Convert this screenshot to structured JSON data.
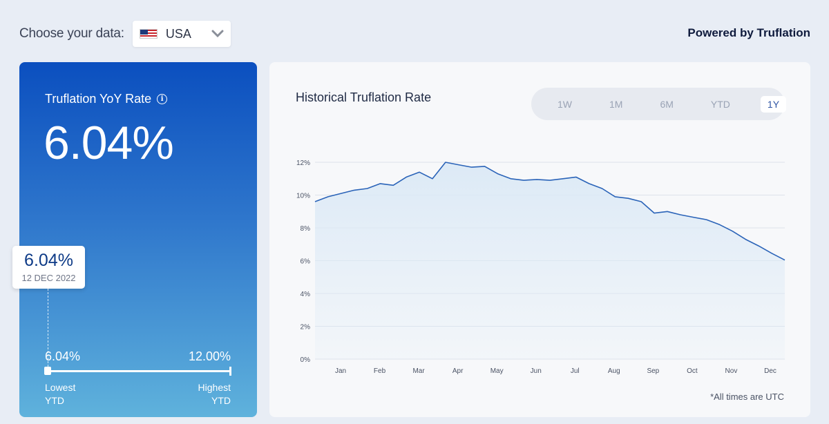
{
  "header": {
    "choose_label": "Choose your data:",
    "country": "USA",
    "country_flag": "us-flag-icon",
    "powered_by": "Powered by Truflation"
  },
  "rate_card": {
    "title": "Truflation YoY Rate",
    "info_icon": "info-icon",
    "current_rate": "6.04%",
    "tooltip_value": "6.04%",
    "tooltip_date": "12 DEC 2022",
    "lowest_value": "6.04%",
    "highest_value": "12.00%",
    "lowest_label": "Lowest",
    "highest_label": "Highest",
    "ytd_label": "YTD",
    "current_position_fraction": 0.0
  },
  "chart_panel": {
    "title": "Historical Truflation Rate",
    "tabs": [
      {
        "label": "1W",
        "active": false
      },
      {
        "label": "1M",
        "active": false
      },
      {
        "label": "6M",
        "active": false
      },
      {
        "label": "YTD",
        "active": false
      },
      {
        "label": "1Y",
        "active": true
      }
    ],
    "footnote": "*All times are UTC"
  },
  "chart_data": {
    "type": "area",
    "title": "Historical Truflation Rate",
    "xlabel": "",
    "ylabel": "",
    "ylim": [
      0,
      12
    ],
    "y_ticks": [
      "0%",
      "2%",
      "4%",
      "6%",
      "8%",
      "10%",
      "12%"
    ],
    "x_ticks": [
      "Jan",
      "Feb",
      "Mar",
      "Apr",
      "May",
      "Jun",
      "Jul",
      "Aug",
      "Sep",
      "Oct",
      "Nov",
      "Dec"
    ],
    "grid": true,
    "line_color": "#2a63b8",
    "fill_color": "#dbe9f6",
    "x": [
      "Dec 12",
      "Dec 20",
      "Jan 1",
      "Jan 10",
      "Jan 20",
      "Feb 1",
      "Feb 10",
      "Feb 20",
      "Mar 1",
      "Mar 10",
      "Mar 20",
      "Apr 1",
      "Apr 10",
      "Apr 20",
      "May 1",
      "May 10",
      "May 20",
      "Jun 1",
      "Jun 10",
      "Jun 20",
      "Jul 1",
      "Jul 10",
      "Jul 20",
      "Aug 1",
      "Aug 10",
      "Aug 20",
      "Sep 1",
      "Sep 10",
      "Sep 20",
      "Oct 1",
      "Oct 10",
      "Oct 20",
      "Nov 1",
      "Nov 10",
      "Nov 20",
      "Dec 1",
      "Dec 12"
    ],
    "values": [
      9.6,
      9.9,
      10.1,
      10.3,
      10.4,
      10.7,
      10.6,
      11.1,
      11.4,
      11.0,
      12.0,
      11.85,
      11.7,
      11.75,
      11.3,
      11.0,
      10.9,
      10.95,
      10.9,
      11.0,
      11.1,
      10.7,
      10.4,
      9.9,
      9.8,
      9.6,
      8.9,
      9.0,
      8.8,
      8.65,
      8.5,
      8.2,
      7.8,
      7.3,
      6.9,
      6.45,
      6.04
    ]
  }
}
